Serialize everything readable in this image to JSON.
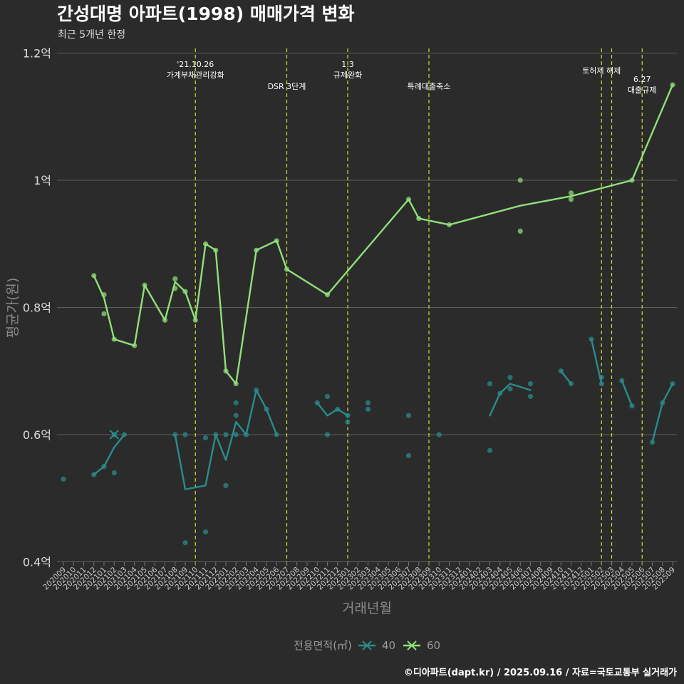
{
  "chart_data": {
    "type": "line",
    "title": "간성대명 아파트(1998) 매매가격 변화",
    "subtitle": "최근 5개년 한정",
    "xlabel": "거래년월",
    "ylabel": "평균가(원)",
    "ylim": [
      0.4,
      1.2
    ],
    "yticks": [
      {
        "value": 0.4,
        "label": "0.4억"
      },
      {
        "value": 0.6,
        "label": "0.6억"
      },
      {
        "value": 0.8,
        "label": "0.8억"
      },
      {
        "value": 1.0,
        "label": "1억"
      },
      {
        "value": 1.2,
        "label": "1.2억"
      }
    ],
    "x_categories": [
      "202009",
      "202010",
      "202011",
      "202012",
      "202101",
      "202102",
      "202103",
      "202104",
      "202105",
      "202106",
      "202107",
      "202108",
      "202109",
      "202110",
      "202111",
      "202112",
      "202201",
      "202202",
      "202203",
      "202204",
      "202205",
      "202206",
      "202207",
      "202208",
      "202209",
      "202210",
      "202211",
      "202212",
      "202301",
      "202302",
      "202303",
      "202304",
      "202305",
      "202306",
      "202307",
      "202308",
      "202309",
      "202310",
      "202311",
      "202312",
      "202401",
      "202402",
      "202403",
      "202404",
      "202405",
      "202406",
      "202407",
      "202408",
      "202409",
      "202410",
      "202411",
      "202412",
      "202501",
      "202502",
      "202503",
      "202504",
      "202505",
      "202506",
      "202507",
      "202508",
      "202509"
    ],
    "legend": {
      "title": "전용면적(㎡)",
      "position": "bottom"
    },
    "series": [
      {
        "name": "40",
        "color": "#2a8c8c",
        "segments": [
          [
            [
              "202012",
              0.537
            ],
            [
              "202101",
              0.55
            ],
            [
              "202102",
              0.58
            ],
            [
              "202103",
              0.6
            ]
          ],
          [
            [
              "202108",
              0.6
            ],
            [
              "202109",
              0.514
            ],
            [
              "202111",
              0.52
            ],
            [
              "202112",
              0.6
            ],
            [
              "202201",
              0.56
            ],
            [
              "202202",
              0.62
            ],
            [
              "202203",
              0.6
            ],
            [
              "202204",
              0.67
            ],
            [
              "202205",
              0.64
            ],
            [
              "202206",
              0.6
            ]
          ],
          [
            [
              "202210",
              0.65
            ],
            [
              "202211",
              0.63
            ],
            [
              "202212",
              0.64
            ],
            [
              "202301",
              0.63
            ]
          ],
          [
            [
              "202403",
              0.63
            ],
            [
              "202404",
              0.665
            ],
            [
              "202405",
              0.68
            ],
            [
              "202407",
              0.67
            ]
          ],
          [
            [
              "202410",
              0.7
            ],
            [
              "202411",
              0.68
            ]
          ],
          [
            [
              "202501",
              0.75
            ],
            [
              "202502",
              0.68
            ]
          ],
          [
            [
              "202504",
              0.685
            ],
            [
              "202505",
              0.645
            ]
          ],
          [
            [
              "202507",
              0.588
            ],
            [
              "202508",
              0.65
            ],
            [
              "202509",
              0.68
            ]
          ]
        ],
        "points": [
          [
            "202009",
            0.53
          ],
          [
            "202012",
            0.537
          ],
          [
            "202101",
            0.55
          ],
          [
            "202102",
            0.54
          ],
          [
            "202102",
            0.6
          ],
          [
            "202103",
            0.6
          ],
          [
            "202108",
            0.6
          ],
          [
            "202109",
            0.6
          ],
          [
            "202109",
            0.43
          ],
          [
            "202111",
            0.595
          ],
          [
            "202111",
            0.447
          ],
          [
            "202112",
            0.6
          ],
          [
            "202201",
            0.6
          ],
          [
            "202201",
            0.52
          ],
          [
            "202202",
            0.65
          ],
          [
            "202202",
            0.63
          ],
          [
            "202202",
            0.6
          ],
          [
            "202203",
            0.6
          ],
          [
            "202204",
            0.67
          ],
          [
            "202205",
            0.64
          ],
          [
            "202206",
            0.6
          ],
          [
            "202210",
            0.65
          ],
          [
            "202211",
            0.66
          ],
          [
            "202211",
            0.6
          ],
          [
            "202212",
            0.64
          ],
          [
            "202301",
            0.63
          ],
          [
            "202301",
            0.62
          ],
          [
            "202303",
            0.65
          ],
          [
            "202303",
            0.64
          ],
          [
            "202307",
            0.63
          ],
          [
            "202307",
            0.567
          ],
          [
            "202310",
            0.6
          ],
          [
            "202403",
            0.68
          ],
          [
            "202403",
            0.575
          ],
          [
            "202404",
            0.665
          ],
          [
            "202405",
            0.69
          ],
          [
            "202405",
            0.672
          ],
          [
            "202407",
            0.68
          ],
          [
            "202407",
            0.66
          ],
          [
            "202410",
            0.7
          ],
          [
            "202411",
            0.68
          ],
          [
            "202501",
            0.75
          ],
          [
            "202502",
            0.69
          ],
          [
            "202502",
            0.68
          ],
          [
            "202504",
            0.685
          ],
          [
            "202505",
            0.645
          ],
          [
            "202507",
            0.588
          ],
          [
            "202508",
            0.65
          ],
          [
            "202509",
            0.68
          ]
        ]
      },
      {
        "name": "60",
        "color": "#90e07a",
        "segments": [
          [
            [
              "202012",
              0.85
            ],
            [
              "202101",
              0.815
            ],
            [
              "202102",
              0.75
            ],
            [
              "202104",
              0.74
            ],
            [
              "202105",
              0.835
            ],
            [
              "202107",
              0.78
            ],
            [
              "202108",
              0.84
            ],
            [
              "202109",
              0.825
            ],
            [
              "202110",
              0.78
            ],
            [
              "202111",
              0.9
            ],
            [
              "202112",
              0.89
            ],
            [
              "202201",
              0.7
            ],
            [
              "202202",
              0.68
            ],
            [
              "202204",
              0.89
            ],
            [
              "202206",
              0.905
            ],
            [
              "202207",
              0.86
            ],
            [
              "202211",
              0.82
            ],
            [
              "202307",
              0.97
            ],
            [
              "202308",
              0.94
            ],
            [
              "202311",
              0.93
            ],
            [
              "202406",
              0.96
            ],
            [
              "202411",
              0.975
            ],
            [
              "202505",
              1.0
            ],
            [
              "202509",
              1.15
            ]
          ]
        ],
        "points": [
          [
            "202012",
            0.85
          ],
          [
            "202101",
            0.82
          ],
          [
            "202101",
            0.79
          ],
          [
            "202102",
            0.75
          ],
          [
            "202104",
            0.74
          ],
          [
            "202105",
            0.835
          ],
          [
            "202107",
            0.78
          ],
          [
            "202108",
            0.845
          ],
          [
            "202108",
            0.83
          ],
          [
            "202109",
            0.825
          ],
          [
            "202110",
            0.78
          ],
          [
            "202111",
            0.9
          ],
          [
            "202112",
            0.89
          ],
          [
            "202201",
            0.7
          ],
          [
            "202202",
            0.68
          ],
          [
            "202204",
            0.89
          ],
          [
            "202206",
            0.905
          ],
          [
            "202207",
            0.86
          ],
          [
            "202211",
            0.82
          ],
          [
            "202307",
            0.97
          ],
          [
            "202308",
            0.94
          ],
          [
            "202311",
            0.93
          ],
          [
            "202406",
            1.0
          ],
          [
            "202406",
            0.92
          ],
          [
            "202411",
            0.98
          ],
          [
            "202411",
            0.97
          ],
          [
            "202505",
            1.0
          ],
          [
            "202509",
            1.15
          ]
        ]
      }
    ],
    "events": [
      {
        "x": "202110",
        "lines": [
          "'21.10.26",
          "가계부채관리강화"
        ],
        "level": "high"
      },
      {
        "x": "202207",
        "lines": [
          "DSR 3단계"
        ],
        "level": "low"
      },
      {
        "x": "202301",
        "lines": [
          "1.3",
          "규제완화"
        ],
        "level": "high"
      },
      {
        "x": "202309",
        "lines": [
          "특례대출축소"
        ],
        "level": "low"
      },
      {
        "x": "202502",
        "lines": [
          "토허제 해제"
        ],
        "level": "top"
      },
      {
        "x": "202503",
        "lines": [],
        "level": "none"
      },
      {
        "x": "202506",
        "lines": [
          "6.27",
          "대출규제"
        ],
        "level": "mid"
      }
    ]
  },
  "legend_labels": {
    "title": "전용면적(㎡)",
    "items": [
      "40",
      "60"
    ]
  },
  "source": "©디아파트(dapt.kr) / 2025.09.16 / 자료=국토교통부 실거래가"
}
